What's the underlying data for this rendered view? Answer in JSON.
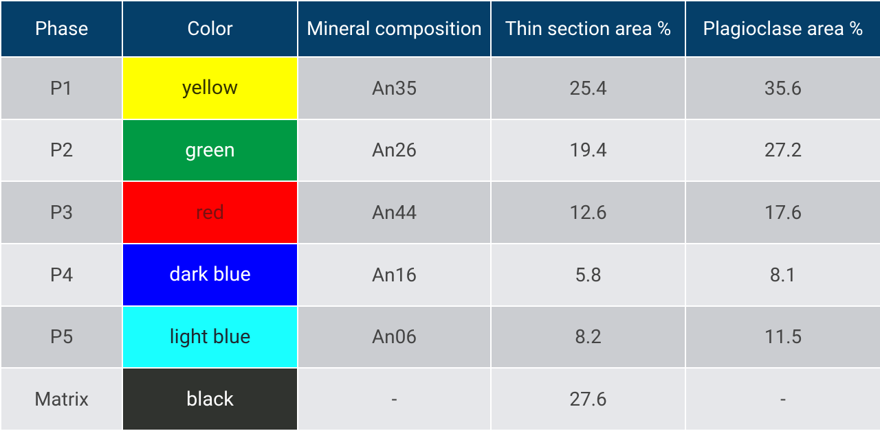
{
  "table": {
    "header": [
      "Phase",
      "Color",
      "Mineral composition",
      "Thin section area %",
      "Plagioclase area %"
    ],
    "rows": [
      [
        "P1",
        "yellow",
        "An35",
        25.4,
        35.6
      ],
      [
        "P2",
        "green",
        "An26",
        19.4,
        27.2
      ],
      [
        "P3",
        "red",
        "An44",
        12.6,
        17.6
      ],
      [
        "P4",
        "dark blue",
        "An16",
        5.8,
        8.1
      ],
      [
        "P5",
        "light blue",
        "An06",
        8.2,
        11.5
      ],
      [
        "Matrix",
        "black",
        "-",
        27.6,
        "-"
      ]
    ]
  }
}
